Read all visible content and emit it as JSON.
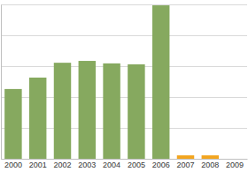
{
  "chart_data": {
    "type": "bar",
    "categories": [
      "2000",
      "2001",
      "2002",
      "2003",
      "2004",
      "2005",
      "2006",
      "2007",
      "2008",
      "2009"
    ],
    "values": [
      2.26,
      2.63,
      3.11,
      3.17,
      3.09,
      3.06,
      4.97,
      0.11,
      0.11,
      0
    ],
    "colors": [
      "#86a95f",
      "#86a95f",
      "#86a95f",
      "#86a95f",
      "#86a95f",
      "#86a95f",
      "#86a95f",
      "#f3a51e",
      "#f3a51e",
      "#f3a51e"
    ],
    "ylim": [
      0,
      5
    ],
    "yticks": [
      0,
      1,
      2,
      3,
      4,
      5
    ],
    "grid": true,
    "tick_labels": "x"
  }
}
